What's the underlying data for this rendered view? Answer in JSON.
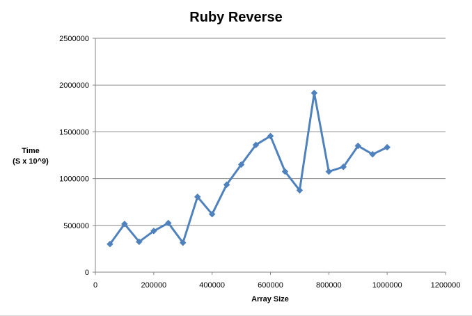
{
  "chart_data": {
    "type": "line",
    "title": "Ruby Reverse",
    "xlabel": "Array Size",
    "ylabel_lines": [
      "Time",
      "(S x 10^9)"
    ],
    "xlim": [
      0,
      1200000
    ],
    "ylim": [
      0,
      2500000
    ],
    "x_ticks": [
      0,
      200000,
      400000,
      600000,
      800000,
      1000000,
      1200000
    ],
    "y_ticks": [
      0,
      500000,
      1000000,
      1500000,
      2000000,
      2500000
    ],
    "grid": "horizontal",
    "legend": "none",
    "series": [
      {
        "color": "#4F81BD",
        "marker": "diamond",
        "points": [
          [
            50000,
            300000
          ],
          [
            100000,
            515000
          ],
          [
            150000,
            325000
          ],
          [
            200000,
            440000
          ],
          [
            250000,
            525000
          ],
          [
            300000,
            315000
          ],
          [
            350000,
            805000
          ],
          [
            400000,
            620000
          ],
          [
            450000,
            935000
          ],
          [
            500000,
            1150000
          ],
          [
            550000,
            1360000
          ],
          [
            600000,
            1455000
          ],
          [
            650000,
            1075000
          ],
          [
            700000,
            875000
          ],
          [
            750000,
            1915000
          ],
          [
            800000,
            1075000
          ],
          [
            850000,
            1125000
          ],
          [
            900000,
            1350000
          ],
          [
            950000,
            1260000
          ],
          [
            1000000,
            1335000
          ]
        ]
      }
    ]
  }
}
